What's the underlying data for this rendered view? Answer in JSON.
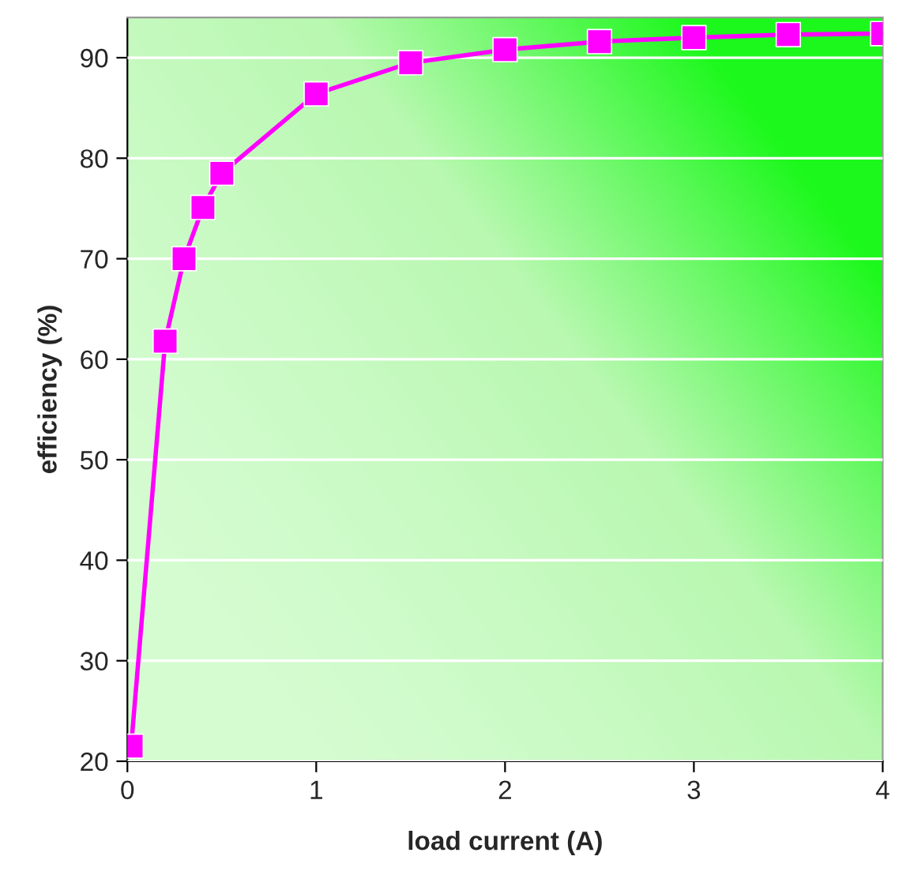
{
  "chart_data": {
    "type": "line",
    "xlabel": "load current (A)",
    "ylabel": "efficiency (%)",
    "x": [
      0.02,
      0.2,
      0.3,
      0.4,
      0.5,
      1.0,
      1.5,
      2.0,
      2.5,
      3.0,
      3.5,
      4.0
    ],
    "series": [
      {
        "color": "#ff00ff",
        "values": [
          21.5,
          61.8,
          70,
          75.1,
          78.5,
          86.4,
          89.5,
          90.8,
          91.6,
          92.0,
          92.3,
          92.4
        ]
      }
    ],
    "xlim": [
      0,
      4
    ],
    "xticks": [
      0,
      1,
      2,
      3,
      4
    ],
    "ylim": [
      20,
      94
    ],
    "yticks": [
      20,
      30,
      40,
      50,
      60,
      70,
      80,
      90
    ],
    "grid": "y",
    "legend": false,
    "marker": "square",
    "line_style": "solid"
  }
}
